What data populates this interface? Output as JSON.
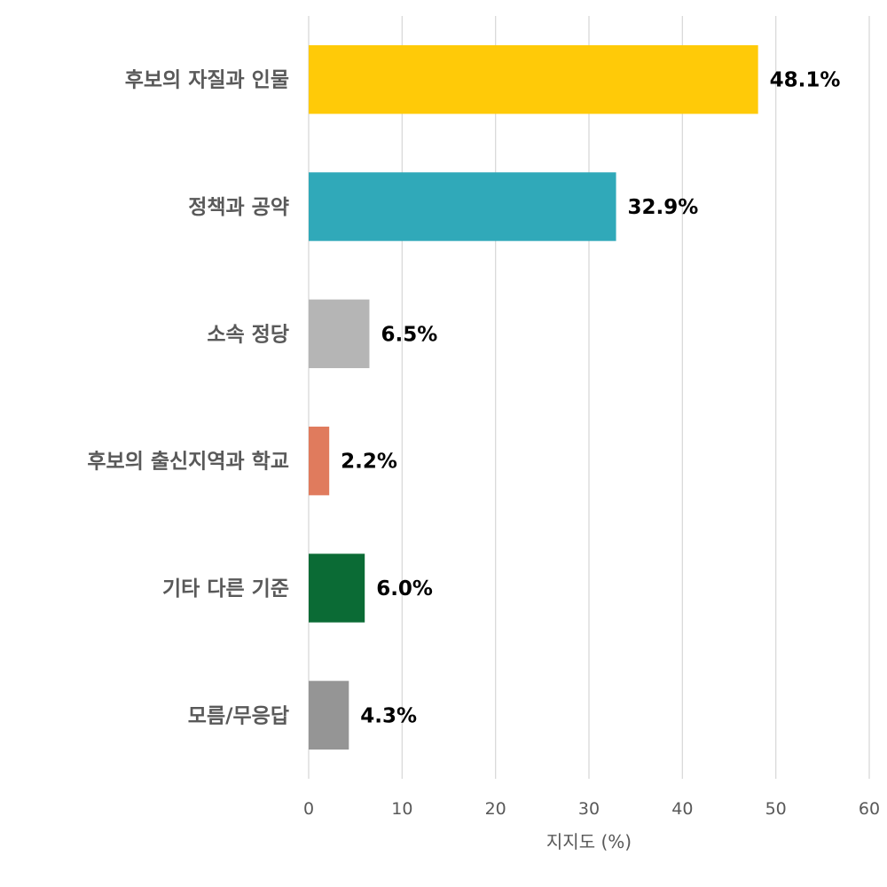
{
  "chart_data": {
    "type": "bar",
    "orientation": "horizontal",
    "categories": [
      "후보의 자질과 인물",
      "정책과 공약",
      "소속 정당",
      "후보의 출신지역과 학교",
      "기타 다른 기준",
      "모름/무응답"
    ],
    "values": [
      48.1,
      32.9,
      6.5,
      2.2,
      6.0,
      4.3
    ],
    "value_labels": [
      "48.1%",
      "32.9%",
      "6.5%",
      "2.2%",
      "6.0%",
      "4.3%"
    ],
    "colors": [
      "#FFCA08",
      "#30A9B9",
      "#B5B5B5",
      "#E07B5D",
      "#0B6B35",
      "#959595"
    ],
    "xlabel": "지지도 (%)",
    "ylabel": "",
    "xlim": [
      0,
      60
    ],
    "xticks": [
      0,
      10,
      20,
      30,
      40,
      50,
      60
    ],
    "grid": true,
    "legend": "none"
  }
}
